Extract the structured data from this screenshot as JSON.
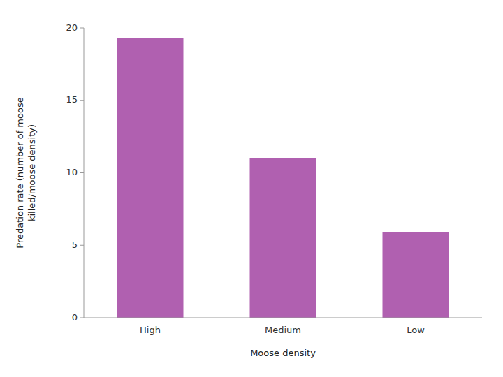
{
  "chart_data": {
    "type": "bar",
    "categories": [
      "High",
      "Medium",
      "Low"
    ],
    "values": [
      19.3,
      11.0,
      5.9
    ],
    "color": "#b060b0",
    "xlabel": "Moose density",
    "ylabel": "Predation rate (number of moose\nkilled/moose density)",
    "ylim": [
      0,
      20
    ],
    "yticks": [
      0,
      5,
      10,
      15,
      20
    ],
    "grid": false
  }
}
